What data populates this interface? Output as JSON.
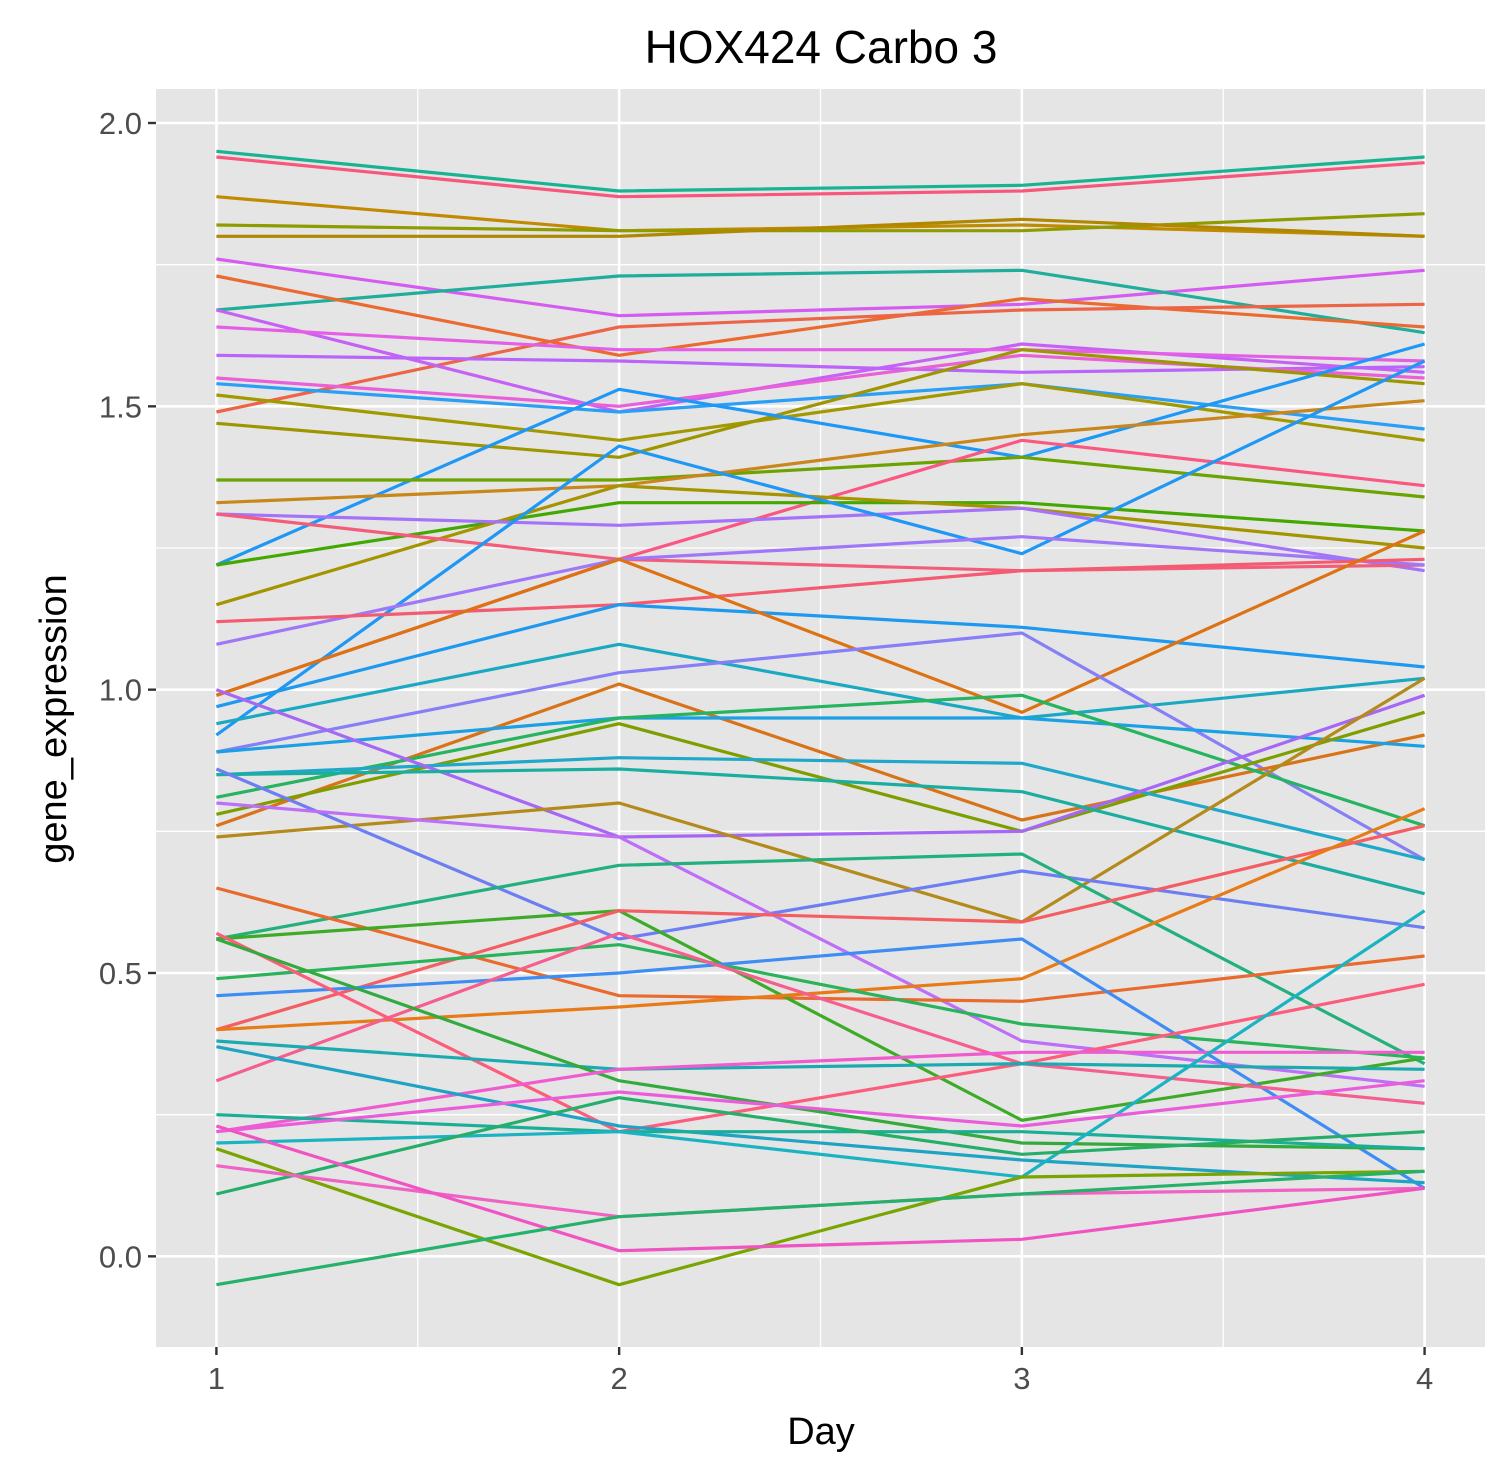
{
  "chart_data": {
    "type": "line",
    "title": "HOX424 Carbo 3",
    "xlabel": "Day",
    "ylabel": "gene_expression",
    "x": [
      1,
      2,
      3,
      4
    ],
    "x_ticks": [
      "1",
      "2",
      "3",
      "4"
    ],
    "y_ticks": [
      "0.0",
      "0.5",
      "1.0",
      "1.5",
      "2.0"
    ],
    "xlim": [
      0.85,
      4.15
    ],
    "ylim": [
      -0.16,
      2.06
    ],
    "grid": true,
    "legend": "none",
    "panel_background": "#e5e5e5",
    "grid_color": "#ffffff",
    "series": [
      {
        "color": "#19b394",
        "values": [
          1.95,
          1.88,
          1.89,
          1.94
        ]
      },
      {
        "color": "#f7577c",
        "values": [
          1.94,
          1.87,
          1.88,
          1.93
        ]
      },
      {
        "color": "#c18a00",
        "values": [
          1.87,
          1.81,
          1.82,
          1.8
        ]
      },
      {
        "color": "#8f9c00",
        "values": [
          1.82,
          1.81,
          1.81,
          1.84
        ]
      },
      {
        "color": "#b08800",
        "values": [
          1.8,
          1.8,
          1.83,
          1.8
        ]
      },
      {
        "color": "#d55cf0",
        "values": [
          1.76,
          1.66,
          1.68,
          1.74
        ]
      },
      {
        "color": "#1fae9b",
        "values": [
          1.67,
          1.73,
          1.74,
          1.63
        ]
      },
      {
        "color": "#eb6a2f",
        "values": [
          1.73,
          1.59,
          1.69,
          1.64
        ]
      },
      {
        "color": "#ec6547",
        "values": [
          1.49,
          1.64,
          1.67,
          1.68
        ]
      },
      {
        "color": "#c761f5",
        "values": [
          1.67,
          1.49,
          1.61,
          1.56
        ]
      },
      {
        "color": "#e55fe6",
        "values": [
          1.64,
          1.6,
          1.6,
          1.58
        ]
      },
      {
        "color": "#bb64fb",
        "values": [
          1.59,
          1.58,
          1.56,
          1.57
        ]
      },
      {
        "color": "#e960d8",
        "values": [
          1.55,
          1.5,
          1.59,
          1.55
        ]
      },
      {
        "color": "#2b9ff5",
        "values": [
          1.54,
          1.49,
          1.54,
          1.46
        ]
      },
      {
        "color": "#a29800",
        "values": [
          1.52,
          1.44,
          1.54,
          1.44
        ]
      },
      {
        "color": "#9d9600",
        "values": [
          1.47,
          1.41,
          1.6,
          1.54
        ]
      },
      {
        "color": "#1e98f7",
        "values": [
          1.22,
          1.53,
          1.41,
          1.61
        ]
      },
      {
        "color": "#6da300",
        "values": [
          1.37,
          1.37,
          1.41,
          1.34
        ]
      },
      {
        "color": "#c9861a",
        "values": [
          1.33,
          1.36,
          1.45,
          1.51
        ]
      },
      {
        "color": "#fa5882",
        "values": [
          0.99,
          1.23,
          1.44,
          1.36
        ]
      },
      {
        "color": "#43a800",
        "values": [
          1.22,
          1.33,
          1.33,
          1.28
        ]
      },
      {
        "color": "#a49400",
        "values": [
          1.15,
          1.36,
          1.32,
          1.25
        ]
      },
      {
        "color": "#a473f9",
        "values": [
          1.31,
          1.29,
          1.32,
          1.21
        ]
      },
      {
        "color": "#f35d7a",
        "values": [
          1.31,
          1.23,
          1.21,
          1.22
        ]
      },
      {
        "color": "#1e97f5",
        "values": [
          0.92,
          1.43,
          1.24,
          1.58
        ]
      },
      {
        "color": "#9f77f7",
        "values": [
          1.08,
          1.23,
          1.27,
          1.22
        ]
      },
      {
        "color": "#f45b70",
        "values": [
          1.12,
          1.15,
          1.21,
          1.23
        ]
      },
      {
        "color": "#1e99f0",
        "values": [
          0.97,
          1.15,
          1.11,
          1.04
        ]
      },
      {
        "color": "#dd7213",
        "values": [
          0.99,
          1.23,
          0.96,
          1.28
        ]
      },
      {
        "color": "#1ba9c2",
        "values": [
          0.94,
          1.08,
          0.95,
          1.02
        ]
      },
      {
        "color": "#867ff5",
        "values": [
          0.89,
          1.03,
          1.1,
          0.7
        ]
      },
      {
        "color": "#d9731a",
        "values": [
          0.76,
          1.01,
          0.77,
          0.92
        ]
      },
      {
        "color": "#1aa0e3",
        "values": [
          0.89,
          0.95,
          0.95,
          0.9
        ]
      },
      {
        "color": "#25b460",
        "values": [
          0.81,
          0.95,
          0.99,
          0.76
        ]
      },
      {
        "color": "#7e9e00",
        "values": [
          0.78,
          0.94,
          0.75,
          0.96
        ]
      },
      {
        "color": "#1fa8c9",
        "values": [
          0.85,
          0.88,
          0.87,
          0.7
        ]
      },
      {
        "color": "#a767f5",
        "values": [
          1.0,
          0.74,
          0.75,
          0.99
        ]
      },
      {
        "color": "#1aaea0",
        "values": [
          0.85,
          0.86,
          0.82,
          0.64
        ]
      },
      {
        "color": "#b38a1b",
        "values": [
          0.74,
          0.8,
          0.59,
          1.02
        ]
      },
      {
        "color": "#6d7ef2",
        "values": [
          0.86,
          0.56,
          0.68,
          0.58
        ]
      },
      {
        "color": "#be6ef7",
        "values": [
          0.8,
          0.74,
          0.38,
          0.3
        ]
      },
      {
        "color": "#22b07c",
        "values": [
          0.56,
          0.69,
          0.71,
          0.34
        ]
      },
      {
        "color": "#e86a2c",
        "values": [
          0.65,
          0.46,
          0.45,
          0.53
        ]
      },
      {
        "color": "#3eab28",
        "values": [
          0.56,
          0.61,
          0.24,
          0.35
        ]
      },
      {
        "color": "#f45e63",
        "values": [
          0.4,
          0.61,
          0.59,
          0.76
        ]
      },
      {
        "color": "#e87b16",
        "values": [
          0.4,
          0.44,
          0.49,
          0.79
        ]
      },
      {
        "color": "#2ab358",
        "values": [
          0.49,
          0.55,
          0.41,
          0.35
        ]
      },
      {
        "color": "#3d8df4",
        "values": [
          0.46,
          0.5,
          0.56,
          0.12
        ]
      },
      {
        "color": "#f55e8e",
        "values": [
          0.31,
          0.57,
          0.34,
          0.27
        ]
      },
      {
        "color": "#fb5d7b",
        "values": [
          0.57,
          0.22,
          0.34,
          0.48
        ]
      },
      {
        "color": "#1caab1",
        "values": [
          0.38,
          0.33,
          0.34,
          0.33
        ]
      },
      {
        "color": "#33aa3c",
        "values": [
          0.56,
          0.31,
          0.2,
          0.19
        ]
      },
      {
        "color": "#ef5ccf",
        "values": [
          0.22,
          0.33,
          0.36,
          0.36
        ]
      },
      {
        "color": "#1fa3c4",
        "values": [
          0.37,
          0.23,
          0.17,
          0.13
        ]
      },
      {
        "color": "#1bae96",
        "values": [
          0.25,
          0.22,
          0.22,
          0.19
        ]
      },
      {
        "color": "#1ab3c2",
        "values": [
          0.2,
          0.22,
          0.14,
          0.61
        ]
      },
      {
        "color": "#ea5dda",
        "values": [
          0.22,
          0.29,
          0.23,
          0.31
        ]
      },
      {
        "color": "#7aa400",
        "values": [
          0.19,
          -0.05,
          0.14,
          0.15
        ]
      },
      {
        "color": "#24ae6a",
        "values": [
          0.11,
          0.28,
          0.18,
          0.22
        ]
      },
      {
        "color": "#f062c4",
        "values": [
          0.16,
          0.07,
          0.11,
          0.12
        ]
      },
      {
        "color": "#f054c2",
        "values": [
          0.23,
          0.01,
          0.03,
          0.12
        ]
      },
      {
        "color": "#24b26a",
        "values": [
          -0.05,
          0.07,
          0.11,
          0.15
        ]
      }
    ]
  }
}
